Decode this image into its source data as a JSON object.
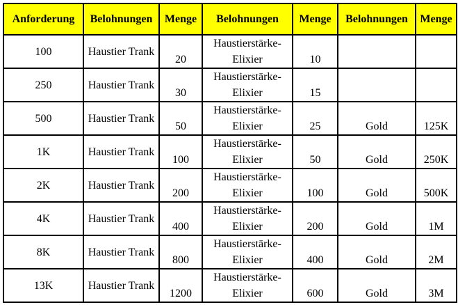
{
  "header": [
    "Anforderung",
    "Belohnungen",
    "Menge",
    "Belohnungen",
    "Menge",
    "Belohnungen",
    "Menge"
  ],
  "colors": {
    "header_bg": "#ffff00",
    "border": "#000000"
  },
  "rows": [
    {
      "req": "100",
      "r1": "Haustier Trank",
      "m1": "20",
      "r2": "Haustierstärke-Elixier",
      "m2": "10",
      "r3": "",
      "m3": ""
    },
    {
      "req": "250",
      "r1": "Haustier Trank",
      "m1": "30",
      "r2": "Haustierstärke-Elixier",
      "m2": "15",
      "r3": "",
      "m3": ""
    },
    {
      "req": "500",
      "r1": "Haustier Trank",
      "m1": "50",
      "r2": "Haustierstärke-Elixier",
      "m2": "25",
      "r3": "Gold",
      "m3": "125K"
    },
    {
      "req": "1K",
      "r1": "Haustier Trank",
      "m1": "100",
      "r2": "Haustierstärke-Elixier",
      "m2": "50",
      "r3": "Gold",
      "m3": "250K"
    },
    {
      "req": "2K",
      "r1": "Haustier Trank",
      "m1": "200",
      "r2": "Haustierstärke-Elixier",
      "m2": "100",
      "r3": "Gold",
      "m3": "500K"
    },
    {
      "req": "4K",
      "r1": "Haustier Trank",
      "m1": "400",
      "r2": "Haustierstärke-Elixier",
      "m2": "200",
      "r3": "Gold",
      "m3": "1M"
    },
    {
      "req": "8K",
      "r1": "Haustier Trank",
      "m1": "800",
      "r2": "Haustierstärke-Elixier",
      "m2": "400",
      "r3": "Gold",
      "m3": "2M"
    },
    {
      "req": "13K",
      "r1": "Haustier Trank",
      "m1": "1200",
      "r2": "Haustierstärke-Elixier",
      "m2": "600",
      "r3": "Gold",
      "m3": "3M"
    }
  ]
}
